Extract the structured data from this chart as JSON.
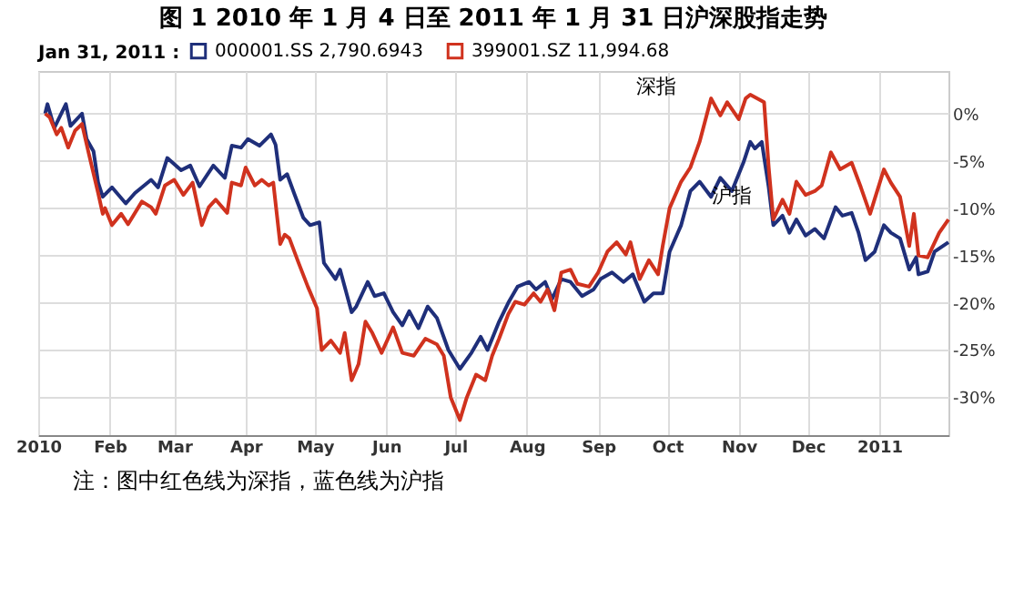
{
  "chart_data": {
    "type": "line",
    "title": "图 1 2010 年 1 月 4 日至 2011 年 1 月 31 日沪深股指走势",
    "legend_title": "Jan 31, 2011 :",
    "legend": "top left",
    "grid": true,
    "xlim": [
      "2010-01-01",
      "2011-01-31"
    ],
    "xticks": [
      {
        "value": "2010-01-01",
        "label": "2010"
      },
      {
        "value": "2010-02-01",
        "label": "Feb"
      },
      {
        "value": "2010-03-01",
        "label": "Mar"
      },
      {
        "value": "2010-04-01",
        "label": "Apr"
      },
      {
        "value": "2010-05-01",
        "label": "May"
      },
      {
        "value": "2010-06-01",
        "label": "Jun"
      },
      {
        "value": "2010-07-01",
        "label": "Jul"
      },
      {
        "value": "2010-08-01",
        "label": "Aug"
      },
      {
        "value": "2010-09-01",
        "label": "Sep"
      },
      {
        "value": "2010-10-01",
        "label": "Oct"
      },
      {
        "value": "2010-11-01",
        "label": "Nov"
      },
      {
        "value": "2010-12-01",
        "label": "Dec"
      },
      {
        "value": "2011-01-01",
        "label": "2011"
      }
    ],
    "ylim": [
      -34,
      4.5
    ],
    "yticks": [
      {
        "value": 0,
        "label": "0%"
      },
      {
        "value": -5,
        "label": "-5%"
      },
      {
        "value": -10,
        "label": "-10%"
      },
      {
        "value": -15,
        "label": "-15%"
      },
      {
        "value": -20,
        "label": "-20%"
      },
      {
        "value": -25,
        "label": "-25%"
      },
      {
        "value": -30,
        "label": "-30%"
      }
    ],
    "series": [
      {
        "name": "000001.SS 2,790.6943",
        "color": "#1f2f7a",
        "x": [
          "2010-01-04",
          "2010-01-05",
          "2010-01-08",
          "2010-01-13",
          "2010-01-15",
          "2010-01-20",
          "2010-01-22",
          "2010-01-25",
          "2010-01-27",
          "2010-01-29",
          "2010-02-02",
          "2010-02-08",
          "2010-02-12",
          "2010-02-19",
          "2010-02-22",
          "2010-02-26",
          "2010-03-04",
          "2010-03-08",
          "2010-03-12",
          "2010-03-18",
          "2010-03-23",
          "2010-03-26",
          "2010-03-30",
          "2010-04-02",
          "2010-04-07",
          "2010-04-12",
          "2010-04-14",
          "2010-04-16",
          "2010-04-19",
          "2010-04-22",
          "2010-04-26",
          "2010-04-29",
          "2010-05-03",
          "2010-05-05",
          "2010-05-10",
          "2010-05-12",
          "2010-05-17",
          "2010-05-19",
          "2010-05-24",
          "2010-05-27",
          "2010-05-31",
          "2010-06-04",
          "2010-06-08",
          "2010-06-11",
          "2010-06-15",
          "2010-06-19",
          "2010-06-23",
          "2010-06-28",
          "2010-07-03",
          "2010-07-08",
          "2010-07-12",
          "2010-07-15",
          "2010-07-20",
          "2010-07-24",
          "2010-07-28",
          "2010-08-02",
          "2010-08-05",
          "2010-08-09",
          "2010-08-12",
          "2010-08-16",
          "2010-08-20",
          "2010-08-25",
          "2010-08-30",
          "2010-09-02",
          "2010-09-07",
          "2010-09-12",
          "2010-09-16",
          "2010-09-21",
          "2010-09-25",
          "2010-09-29",
          "2010-10-02",
          "2010-10-07",
          "2010-10-11",
          "2010-10-15",
          "2010-10-20",
          "2010-10-24",
          "2010-10-29",
          "2010-11-03",
          "2010-11-06",
          "2010-11-08",
          "2010-11-11",
          "2010-11-14",
          "2010-11-16",
          "2010-11-20",
          "2010-11-23",
          "2010-11-26",
          "2010-11-30",
          "2010-12-04",
          "2010-12-08",
          "2010-12-13",
          "2010-12-16",
          "2010-12-20",
          "2010-12-23",
          "2010-12-26",
          "2010-12-30",
          "2011-01-03",
          "2011-01-06",
          "2011-01-10",
          "2011-01-14",
          "2011-01-17",
          "2011-01-18",
          "2011-01-22",
          "2011-01-25",
          "2011-01-31"
        ],
        "values": [
          0,
          1,
          -1.5,
          1,
          -1.3,
          0,
          -2.7,
          -4,
          -7.3,
          -8.8,
          -7.8,
          -9.5,
          -8.4,
          -7,
          -7.8,
          -4.7,
          -6,
          -5.5,
          -7.7,
          -5.5,
          -6.8,
          -3.4,
          -3.6,
          -2.7,
          -3.4,
          -2.2,
          -3.3,
          -7,
          -6.4,
          -8.4,
          -11,
          -11.8,
          -11.5,
          -15.8,
          -17.5,
          -16.5,
          -21,
          -20.4,
          -17.8,
          -19.3,
          -19,
          -21,
          -22.4,
          -20.9,
          -22.7,
          -20.4,
          -21.6,
          -25,
          -27,
          -25.3,
          -23.6,
          -25,
          -22,
          -20,
          -18.3,
          -17.8,
          -18.6,
          -17.8,
          -19.6,
          -17.5,
          -17.8,
          -19.3,
          -18.6,
          -17.5,
          -16.8,
          -17.8,
          -17,
          -19.9,
          -19,
          -19,
          -14.6,
          -11.8,
          -8.2,
          -7.2,
          -8.8,
          -6.8,
          -8.2,
          -5.2,
          -3,
          -3.7,
          -3,
          -7.8,
          -11.8,
          -10.8,
          -12.6,
          -11.2,
          -12.9,
          -12.2,
          -13.2,
          -9.9,
          -10.8,
          -10.5,
          -12.6,
          -15.5,
          -14.6,
          -11.8,
          -12.6,
          -13.2,
          -16.5,
          -15.2,
          -17,
          -16.7,
          -14.6,
          -13.6
        ]
      },
      {
        "name": "399001.SZ 11,994.68",
        "color": "#d0321e",
        "x": [
          "2010-01-04",
          "2010-01-06",
          "2010-01-09",
          "2010-01-11",
          "2010-01-14",
          "2010-01-17",
          "2010-01-20",
          "2010-01-23",
          "2010-01-27",
          "2010-01-29",
          "2010-01-30",
          "2010-02-02",
          "2010-02-06",
          "2010-02-09",
          "2010-02-15",
          "2010-02-19",
          "2010-02-21",
          "2010-02-25",
          "2010-03-01",
          "2010-03-05",
          "2010-03-09",
          "2010-03-13",
          "2010-03-16",
          "2010-03-19",
          "2010-03-24",
          "2010-03-26",
          "2010-03-30",
          "2010-04-01",
          "2010-04-05",
          "2010-04-08",
          "2010-04-11",
          "2010-04-13",
          "2010-04-16",
          "2010-04-18",
          "2010-04-20",
          "2010-04-24",
          "2010-04-28",
          "2010-05-02",
          "2010-05-04",
          "2010-05-08",
          "2010-05-12",
          "2010-05-14",
          "2010-05-17",
          "2010-05-20",
          "2010-05-23",
          "2010-05-26",
          "2010-05-30",
          "2010-06-04",
          "2010-06-08",
          "2010-06-13",
          "2010-06-18",
          "2010-06-23",
          "2010-06-26",
          "2010-06-29",
          "2010-07-03",
          "2010-07-06",
          "2010-07-10",
          "2010-07-14",
          "2010-07-17",
          "2010-07-20",
          "2010-07-24",
          "2010-07-27",
          "2010-07-31",
          "2010-08-04",
          "2010-08-07",
          "2010-08-10",
          "2010-08-13",
          "2010-08-16",
          "2010-08-20",
          "2010-08-23",
          "2010-08-28",
          "2010-09-01",
          "2010-09-05",
          "2010-09-09",
          "2010-09-13",
          "2010-09-15",
          "2010-09-19",
          "2010-09-23",
          "2010-09-27",
          "2010-09-29",
          "2010-10-02",
          "2010-10-07",
          "2010-10-11",
          "2010-10-15",
          "2010-10-20",
          "2010-10-24",
          "2010-10-27",
          "2010-11-01",
          "2010-11-04",
          "2010-11-06",
          "2010-11-12",
          "2010-11-14",
          "2010-11-16",
          "2010-11-20",
          "2010-11-23",
          "2010-11-26",
          "2010-11-30",
          "2010-12-04",
          "2010-12-07",
          "2010-12-11",
          "2010-12-15",
          "2010-12-20",
          "2010-12-24",
          "2010-12-28",
          "2011-01-03",
          "2011-01-06",
          "2011-01-10",
          "2011-01-14",
          "2011-01-16",
          "2011-01-18",
          "2011-01-22",
          "2011-01-27",
          "2011-01-31"
        ],
        "values": [
          0,
          -0.4,
          -2.2,
          -1.5,
          -3.6,
          -1.8,
          -1.1,
          -4.3,
          -8.4,
          -10.6,
          -10,
          -11.8,
          -10.6,
          -11.7,
          -9.3,
          -9.9,
          -10.6,
          -7.6,
          -7,
          -8.6,
          -7.3,
          -11.8,
          -9.9,
          -9.1,
          -10.5,
          -7.3,
          -7.6,
          -5.7,
          -7.6,
          -7,
          -7.6,
          -7.3,
          -13.8,
          -12.8,
          -13.2,
          -15.8,
          -18.3,
          -20.6,
          -25,
          -24,
          -25.3,
          -23.2,
          -28.2,
          -26.5,
          -22,
          -23.2,
          -25.3,
          -22.6,
          -25.3,
          -25.6,
          -23.8,
          -24.4,
          -25.6,
          -30,
          -32.4,
          -30,
          -27.6,
          -28.2,
          -25.6,
          -23.8,
          -21.2,
          -19.9,
          -20.2,
          -19,
          -19.9,
          -18.6,
          -20.8,
          -16.8,
          -16.5,
          -18,
          -18.3,
          -16.8,
          -14.6,
          -13.6,
          -14.9,
          -13.6,
          -17.5,
          -15.5,
          -17,
          -14,
          -10,
          -7.2,
          -5.7,
          -3,
          1.6,
          -0.2,
          1.2,
          -0.6,
          1.6,
          2,
          1.2,
          -5.7,
          -11.2,
          -9.1,
          -10.6,
          -7.2,
          -8.6,
          -8.2,
          -7.6,
          -4.1,
          -5.9,
          -5.2,
          -7.8,
          -10.6,
          -5.9,
          -7.3,
          -8.8,
          -14,
          -10.6,
          -15,
          -15.2,
          -12.6,
          -11.2
        ]
      }
    ],
    "annotations": [
      {
        "text": "深指",
        "x": "2010-10-20",
        "y": 1.6
      },
      {
        "text": "沪指",
        "x": "2010-11-06",
        "y": -3
      },
      "注：图中红色线为深指，蓝色线为沪指"
    ]
  }
}
